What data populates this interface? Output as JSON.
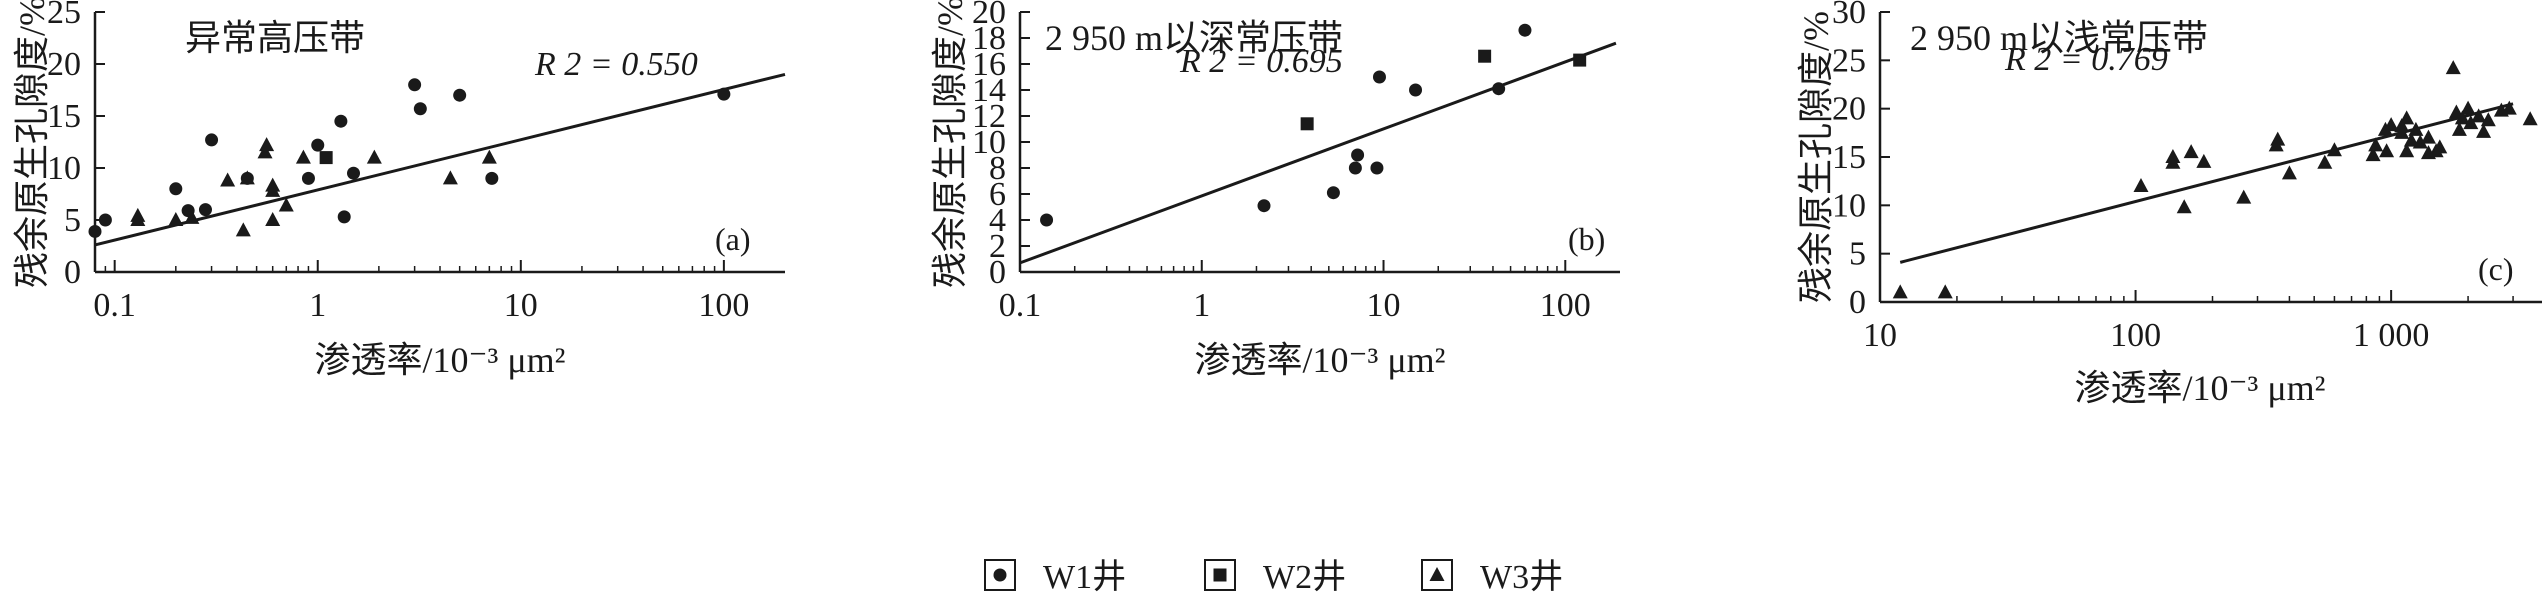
{
  "chart_data": [
    {
      "type": "scatter",
      "title": "异常高压带",
      "panel_label": "(a)",
      "xlabel": "渗透率/10⁻³ μm²",
      "ylabel": "残余原生孔隙度/%",
      "x_scale": "log",
      "xlim": [
        0.08,
        200
      ],
      "ylim": [
        0,
        25
      ],
      "x_ticks": [
        "0.1",
        "1",
        "10",
        "100"
      ],
      "y_ticks": [
        "0",
        "5",
        "10",
        "15",
        "20",
        "25"
      ],
      "r2_label": "R 2 = 0.550",
      "fit_line": {
        "x": [
          0.08,
          200
        ],
        "y": [
          2.6,
          19.0
        ]
      },
      "series": [
        {
          "name": "W1井",
          "marker": "circle",
          "points": [
            [
              0.08,
              3.9
            ],
            [
              0.09,
              5.0
            ],
            [
              0.2,
              8.0
            ],
            [
              0.23,
              5.9
            ],
            [
              0.28,
              6.0
            ],
            [
              0.3,
              12.7
            ],
            [
              0.45,
              9.0
            ],
            [
              0.9,
              9.0
            ],
            [
              1.0,
              12.2
            ],
            [
              1.3,
              14.5
            ],
            [
              1.35,
              5.3
            ],
            [
              1.5,
              9.5
            ],
            [
              3.0,
              18.0
            ],
            [
              3.2,
              15.7
            ],
            [
              5.0,
              17.0
            ],
            [
              7.2,
              9.0
            ],
            [
              100,
              17.1
            ]
          ]
        },
        {
          "name": "W2井",
          "marker": "square",
          "points": [
            [
              1.1,
              11.0
            ]
          ]
        },
        {
          "name": "W3井",
          "marker": "triangle",
          "points": [
            [
              0.13,
              5.0
            ],
            [
              0.13,
              5.4
            ],
            [
              0.2,
              5.0
            ],
            [
              0.24,
              5.2
            ],
            [
              0.36,
              8.8
            ],
            [
              0.43,
              4.0
            ],
            [
              0.45,
              9.0
            ],
            [
              0.55,
              11.5
            ],
            [
              0.56,
              12.2
            ],
            [
              0.6,
              8.3
            ],
            [
              0.6,
              7.8
            ],
            [
              0.6,
              5.0
            ],
            [
              0.7,
              6.4
            ],
            [
              0.85,
              11.0
            ],
            [
              1.9,
              11.0
            ],
            [
              4.5,
              9.0
            ],
            [
              7,
              11.0
            ]
          ]
        }
      ]
    },
    {
      "type": "scatter",
      "title": "2 950 m以深常压带",
      "panel_label": "(b)",
      "xlabel": "渗透率/10⁻³ μm²",
      "ylabel": "残余原生孔隙度/%",
      "x_scale": "log",
      "xlim": [
        0.1,
        200
      ],
      "ylim": [
        0,
        20
      ],
      "x_ticks": [
        "0.1",
        "1",
        "10",
        "100"
      ],
      "y_ticks": [
        "0",
        "2",
        "4",
        "6",
        "8",
        "10",
        "12",
        "14",
        "16",
        "18",
        "20"
      ],
      "r2_label": "R 2 = 0.695",
      "fit_line": {
        "x": [
          0.1,
          190
        ],
        "y": [
          0.7,
          17.6
        ]
      },
      "series": [
        {
          "name": "W1井",
          "marker": "circle",
          "points": [
            [
              0.14,
              4.0
            ],
            [
              2.2,
              5.1
            ],
            [
              5.3,
              6.1
            ],
            [
              7,
              8.0
            ],
            [
              7.2,
              9.0
            ],
            [
              9.2,
              8.0
            ],
            [
              9.5,
              15.0
            ],
            [
              15,
              14.0
            ],
            [
              43,
              14.1
            ],
            [
              60,
              18.6
            ]
          ]
        },
        {
          "name": "W2井",
          "marker": "square",
          "points": [
            [
              3.8,
              11.4
            ],
            [
              36,
              16.6
            ],
            [
              120,
              16.3
            ]
          ]
        },
        {
          "name": "W3井",
          "marker": "triangle",
          "points": []
        }
      ]
    },
    {
      "type": "scatter",
      "title": "2 950 m以浅常压带",
      "panel_label": "(c)",
      "xlabel": "渗透率/10⁻³ μm²",
      "ylabel": "残余原生孔隙度/%",
      "x_scale": "log",
      "xlim": [
        10,
        4000
      ],
      "ylim": [
        0,
        30
      ],
      "x_ticks": [
        "10",
        "100",
        "1 000"
      ],
      "y_ticks": [
        "0",
        "5",
        "10",
        "15",
        "20",
        "25",
        "30"
      ],
      "r2_label": "R 2 = 0.769",
      "fit_line": {
        "x": [
          12,
          3000
        ],
        "y": [
          4.1,
          20.5
        ]
      },
      "series": [
        {
          "name": "W1井",
          "marker": "circle",
          "points": []
        },
        {
          "name": "W2井",
          "marker": "square",
          "points": []
        },
        {
          "name": "W3井",
          "marker": "triangle",
          "points": [
            [
              12,
              1.0
            ],
            [
              18,
              1.0
            ],
            [
              105,
              12.0
            ],
            [
              140,
              14.4
            ],
            [
              140,
              15.0
            ],
            [
              155,
              9.8
            ],
            [
              165,
              15.5
            ],
            [
              185,
              14.5
            ],
            [
              265,
              10.8
            ],
            [
              355,
              16.2
            ],
            [
              360,
              16.8
            ],
            [
              400,
              13.3
            ],
            [
              550,
              14.4
            ],
            [
              600,
              15.7
            ],
            [
              850,
              15.2
            ],
            [
              870,
              16.2
            ],
            [
              950,
              17.8
            ],
            [
              960,
              15.6
            ],
            [
              1000,
              18.3
            ],
            [
              1100,
              17.5
            ],
            [
              1100,
              18.2
            ],
            [
              1150,
              15.6
            ],
            [
              1150,
              19.0
            ],
            [
              1200,
              16.7
            ],
            [
              1250,
              17.8
            ],
            [
              1300,
              16.5
            ],
            [
              1400,
              17.0
            ],
            [
              1400,
              15.4
            ],
            [
              1500,
              15.6
            ],
            [
              1550,
              16.0
            ],
            [
              1750,
              24.2
            ],
            [
              1800,
              19.6
            ],
            [
              1850,
              17.8
            ],
            [
              1900,
              19.0
            ],
            [
              2000,
              20.0
            ],
            [
              2050,
              18.5
            ],
            [
              2200,
              19.2
            ],
            [
              2300,
              17.6
            ],
            [
              2400,
              18.8
            ],
            [
              2700,
              19.8
            ],
            [
              2900,
              20.0
            ],
            [
              3500,
              18.9
            ]
          ]
        }
      ]
    }
  ],
  "legend": {
    "items": [
      {
        "label": "W1井",
        "marker": "circle"
      },
      {
        "label": "W2井",
        "marker": "square"
      },
      {
        "label": "W3井",
        "marker": "triangle"
      }
    ]
  },
  "colors": {
    "ink": "#1a1a1a",
    "background": "#ffffff"
  }
}
